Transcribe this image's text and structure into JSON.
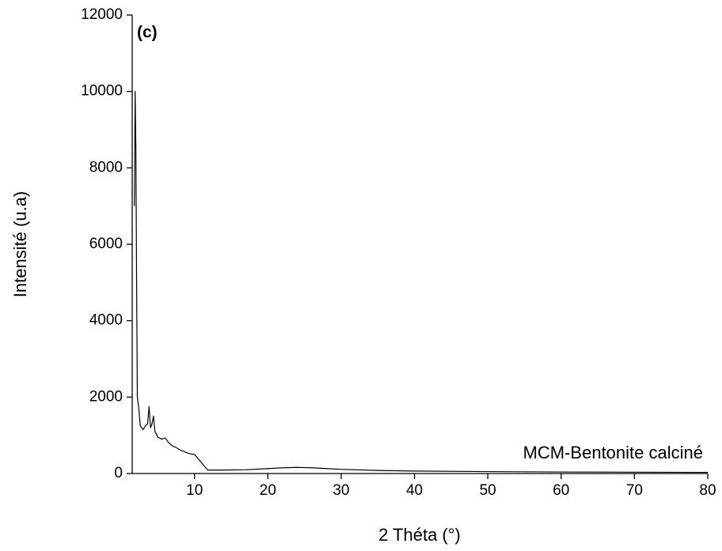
{
  "chart_data": {
    "type": "line",
    "x_label": "2 Théta (°)",
    "y_label": "Intensité (u.a)",
    "annotations": [
      "(c)",
      "MCM-Bentonite calciné"
    ],
    "series": [
      {
        "name": "MCM-Bentonite calciné",
        "color": "#000000",
        "x": [
          1.8,
          1.9,
          2.0,
          2.1,
          2.2,
          2.4,
          2.6,
          3.0,
          3.3,
          3.6,
          3.8,
          4.0,
          4.2,
          4.4,
          4.6,
          5.0,
          5.5,
          6.0,
          6.5,
          7.0,
          7.5,
          8.0,
          8.5,
          9.0,
          9.5,
          10.0,
          11.8,
          14,
          17,
          20,
          22,
          24,
          26,
          28,
          30,
          35,
          40,
          50,
          60,
          70,
          80
        ],
        "values": [
          7000,
          10000,
          8500,
          5000,
          2000,
          1700,
          1250,
          1150,
          1250,
          1300,
          1750,
          1200,
          1300,
          1500,
          1100,
          950,
          900,
          930,
          800,
          720,
          680,
          620,
          580,
          540,
          510,
          500,
          90,
          90,
          100,
          130,
          150,
          160,
          150,
          130,
          110,
          80,
          65,
          50,
          40,
          35,
          30
        ]
      }
    ],
    "xlim": [
      1.5,
      80
    ],
    "xticks": [
      10,
      20,
      30,
      40,
      50,
      60,
      70,
      80
    ],
    "ylim": [
      0,
      12000
    ],
    "yticks": [
      0,
      2000,
      4000,
      6000,
      8000,
      10000,
      12000
    ],
    "grid": false
  }
}
